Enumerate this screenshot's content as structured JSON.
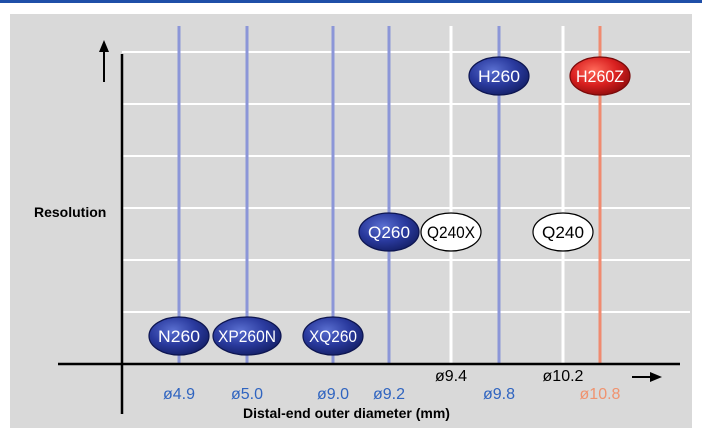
{
  "colors": {
    "top_rule": "#1f4fa8",
    "panel_bg": "#d9d9d9",
    "grid": "#ffffff",
    "blue_line": "#8c96d8",
    "red_line": "#f08a70",
    "blue_label": "#2f64c0",
    "red_label": "#f0936f",
    "black_label": "#000000",
    "blue_oval": "#1f2f8a",
    "red_oval": "#d01c1c",
    "white_oval": "#ffffff"
  },
  "chart_data": {
    "type": "scatter",
    "xlabel": "Distal-end outer diameter (mm)",
    "ylabel": "Resolution",
    "grid": true,
    "columns": [
      {
        "tick": "ø4.9",
        "line": "blue",
        "label_color": "blue"
      },
      {
        "tick": "ø5.0",
        "line": "blue",
        "label_color": "blue"
      },
      {
        "tick": "ø9.0",
        "line": "blue",
        "label_color": "blue"
      },
      {
        "tick": "ø9.2",
        "line": "blue",
        "label_color": "blue"
      },
      {
        "tick": "ø9.4",
        "line": "white",
        "label_color": "black"
      },
      {
        "tick": "ø9.8",
        "line": "blue",
        "label_color": "blue"
      },
      {
        "tick": "ø10.2",
        "line": "white",
        "label_color": "black"
      },
      {
        "tick": "ø10.8",
        "line": "red",
        "label_color": "red"
      }
    ],
    "resolution_levels": 6,
    "scopes": [
      {
        "label": "N260",
        "column": 0,
        "level": 1,
        "style": "blue"
      },
      {
        "label": "XP260N",
        "column": 1,
        "level": 1,
        "style": "blue"
      },
      {
        "label": "XQ260",
        "column": 2,
        "level": 1,
        "style": "blue"
      },
      {
        "label": "Q260",
        "column": 3,
        "level": 3,
        "style": "blue"
      },
      {
        "label": "Q240X",
        "column": 4,
        "level": 3,
        "style": "white"
      },
      {
        "label": "H260",
        "column": 5,
        "level": 6,
        "style": "blue"
      },
      {
        "label": "Q240",
        "column": 6,
        "level": 3,
        "style": "white"
      },
      {
        "label": "H260Z",
        "column": 7,
        "level": 6,
        "style": "red"
      }
    ]
  }
}
